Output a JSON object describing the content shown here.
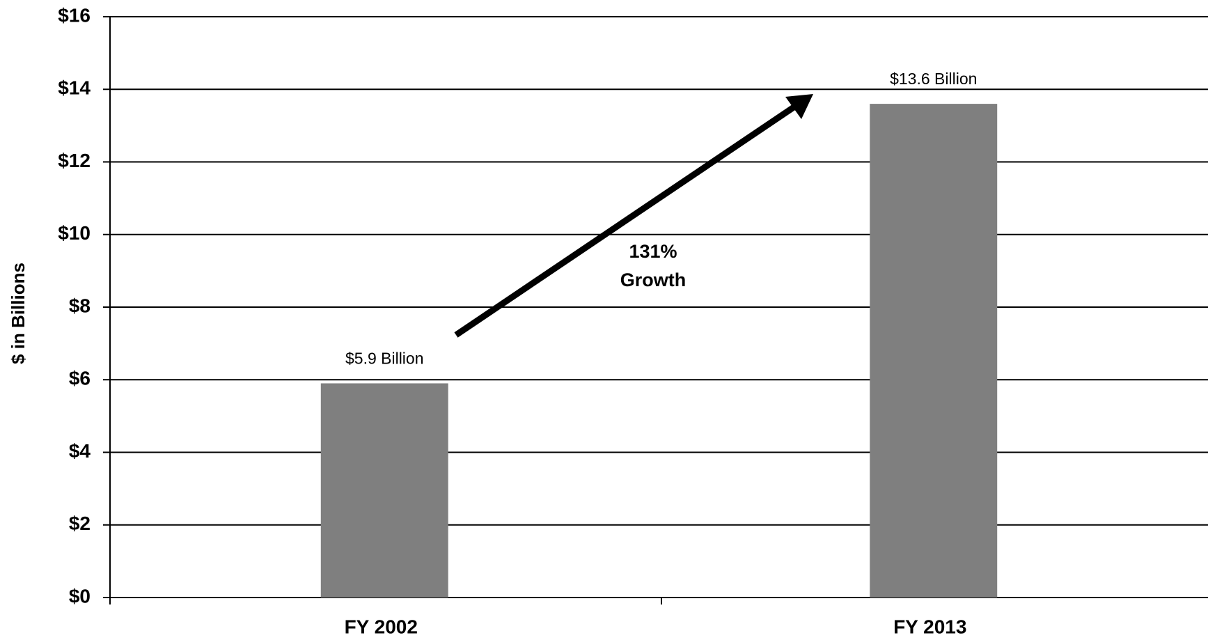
{
  "chart_data": {
    "type": "bar",
    "y_label": "$ in Billions",
    "categories": [
      "FY 2002",
      "FY 2013"
    ],
    "values": [
      5.9,
      13.6
    ],
    "value_labels": [
      "$5.9 Billion",
      "$13.6 Billion"
    ],
    "color": "#7f7f7f",
    "ylim": [
      0,
      16
    ],
    "yticks": [
      {
        "value": 0,
        "label": "$0"
      },
      {
        "value": 2,
        "label": "$2"
      },
      {
        "value": 4,
        "label": "$4"
      },
      {
        "value": 6,
        "label": "$6"
      },
      {
        "value": 8,
        "label": "$8"
      },
      {
        "value": 10,
        "label": "$10"
      },
      {
        "value": 12,
        "label": "$12"
      },
      {
        "value": 14,
        "label": "$14"
      },
      {
        "value": 16,
        "label": "$16"
      }
    ],
    "grid": true,
    "annotations": [
      "131%",
      "Growth"
    ]
  }
}
